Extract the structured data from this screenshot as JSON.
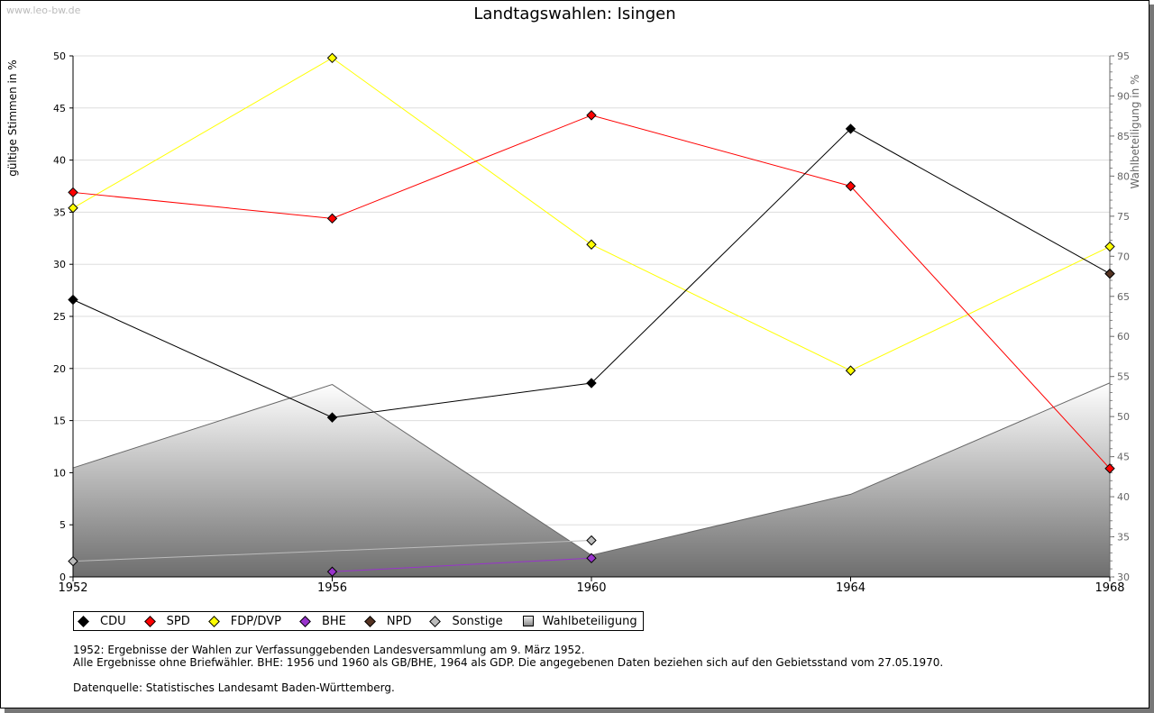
{
  "watermark": "www.leo-bw.de",
  "chart_data": {
    "type": "line",
    "title": "Landtagswahlen: Isingen",
    "ylabel": "gültige Stimmen in %",
    "y2label": "Wahlbeteiligung in %",
    "x": [
      1952,
      1956,
      1960,
      1964,
      1968
    ],
    "ylim": [
      0,
      50
    ],
    "y2lim": [
      30,
      95
    ],
    "yticks": [
      0,
      5,
      10,
      15,
      20,
      25,
      30,
      35,
      40,
      45,
      50
    ],
    "y2ticks": [
      30,
      35,
      40,
      45,
      50,
      55,
      60,
      65,
      70,
      75,
      80,
      85,
      90,
      95
    ],
    "series": [
      {
        "name": "CDU",
        "color": "#000000",
        "values": [
          26.6,
          15.3,
          18.6,
          43.0,
          29.1
        ]
      },
      {
        "name": "SPD",
        "color": "#ff0000",
        "values": [
          36.9,
          34.4,
          44.3,
          37.5,
          10.4
        ]
      },
      {
        "name": "FDP/DVP",
        "color": "#ffff00",
        "values": [
          35.4,
          49.8,
          31.9,
          19.8,
          31.7
        ]
      },
      {
        "name": "BHE",
        "color": "#9933cc",
        "values": [
          null,
          0.5,
          1.8,
          null,
          null
        ]
      },
      {
        "name": "NPD",
        "color": "#553322",
        "values": [
          null,
          null,
          null,
          null,
          29.1
        ]
      },
      {
        "name": "Sonstige",
        "color": "#bbbbbb",
        "values": [
          1.5,
          null,
          3.5,
          null,
          null
        ]
      }
    ],
    "turnout": {
      "name": "Wahlbeteiligung",
      "values": [
        43.6,
        54.0,
        32.7,
        40.3,
        54.2
      ]
    }
  },
  "notes": [
    "1952: Ergebnisse der Wahlen zur Verfassunggebenden Landesversammlung am 9. März 1952.",
    "Alle Ergebnisse ohne Briefwähler. BHE: 1956 und 1960 als GB/BHE, 1964 als GDP. Die angegebenen Daten beziehen sich auf den Gebietsstand vom 27.05.1970.",
    "Datenquelle: Statistisches Landesamt Baden-Württemberg."
  ]
}
